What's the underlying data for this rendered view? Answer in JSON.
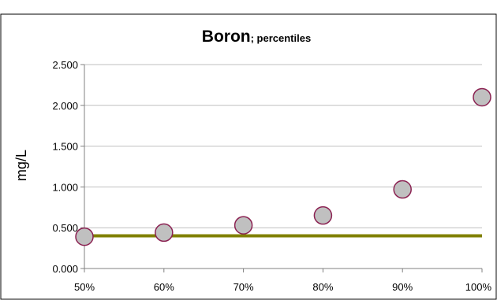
{
  "chart_data": {
    "type": "scatter",
    "title": "Boron",
    "subtitle": "; percentiles",
    "ylabel": "mg/L",
    "xlabel": "",
    "x_ticks": [
      "50%",
      "60%",
      "70%",
      "80%",
      "90%",
      "100%"
    ],
    "y_ticks": [
      "0.000",
      "0.500",
      "1.000",
      "1.500",
      "2.000",
      "2.500"
    ],
    "xlim": [
      50,
      100
    ],
    "ylim": [
      0,
      2.5
    ],
    "grid": true,
    "legend": "none",
    "series": [
      {
        "type": "scatter",
        "points": [
          {
            "x": 50,
            "y": 0.39
          },
          {
            "x": 60,
            "y": 0.44
          },
          {
            "x": 70,
            "y": 0.53
          },
          {
            "x": 80,
            "y": 0.65
          },
          {
            "x": 90,
            "y": 0.97
          },
          {
            "x": 100,
            "y": 2.1
          }
        ],
        "fill_color": "#c0c0c0",
        "edge_color": "#8b2252"
      },
      {
        "type": "line",
        "points": [
          {
            "x": 50,
            "y": 0.4
          },
          {
            "x": 100,
            "y": 0.4
          }
        ],
        "color": "#808000"
      }
    ],
    "colors": {
      "gridline": "#bfbfbf",
      "axis": "#808080",
      "border": "#000000"
    }
  }
}
